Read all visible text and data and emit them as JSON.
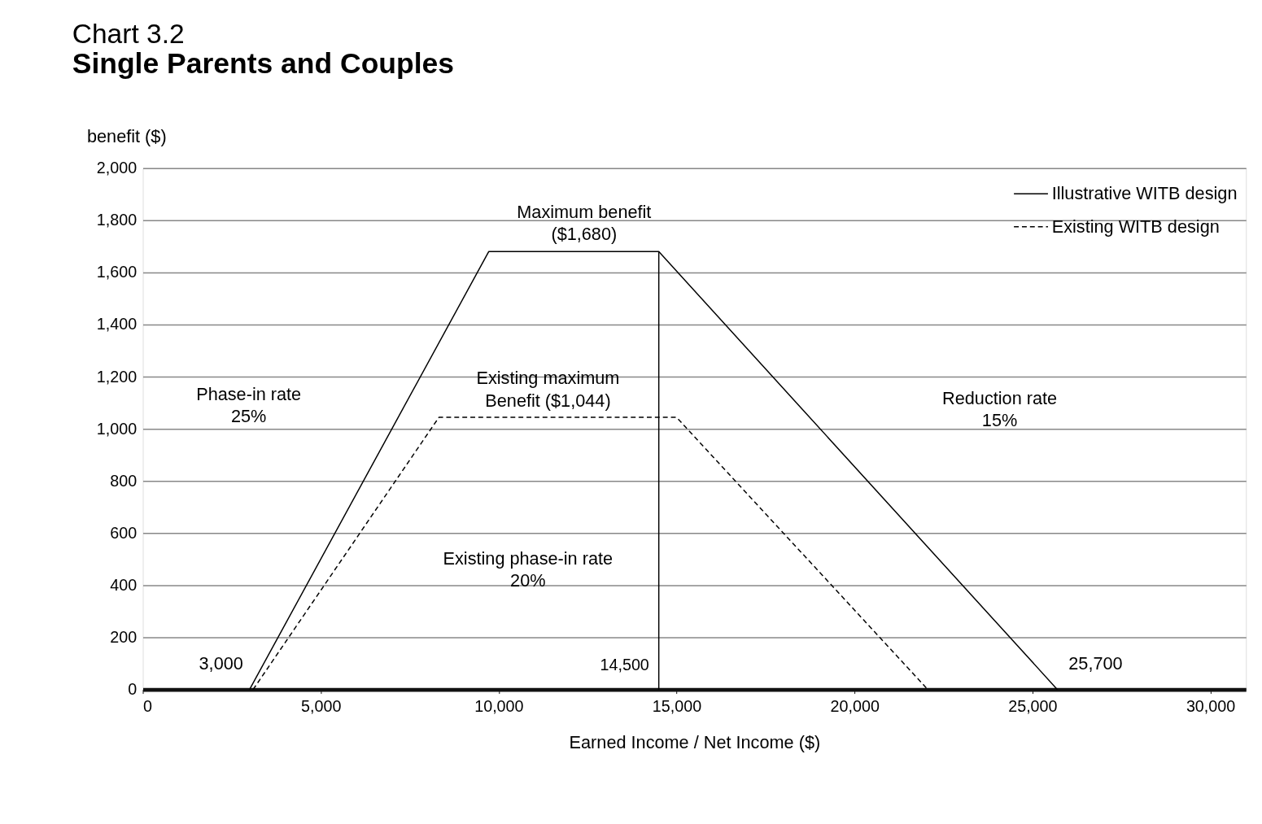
{
  "chart_data": {
    "type": "line",
    "title": "Chart 3.2",
    "subtitle": "Single Parents and Couples",
    "xlabel": "Earned Income / Net Income ($)",
    "ylabel": "benefit ($)",
    "series": [
      {
        "name": "Illustrative WITB design",
        "color": "#000000",
        "line_style": "solid",
        "x": [
          3000,
          9720,
          14500,
          25700
        ],
        "values": [
          0,
          1680,
          1680,
          0
        ]
      },
      {
        "name": "Existing WITB design",
        "color": "#000000",
        "line_style": "dashed",
        "x": [
          3100,
          8320,
          15000,
          22060
        ],
        "values": [
          0,
          1044,
          1044,
          0
        ]
      }
    ],
    "xlim": [
      0,
      31000
    ],
    "xticks": [
      {
        "value": 0,
        "label": "0"
      },
      {
        "value": 5000,
        "label": "5,000"
      },
      {
        "value": 10000,
        "label": "10,000"
      },
      {
        "value": 15000,
        "label": "15,000"
      },
      {
        "value": 20000,
        "label": "20,000"
      },
      {
        "value": 25000,
        "label": "25,000"
      },
      {
        "value": 30000,
        "label": "30,000"
      }
    ],
    "ylim": [
      0,
      2000
    ],
    "yticks": [
      {
        "value": 0,
        "label": "0"
      },
      {
        "value": 200,
        "label": "200"
      },
      {
        "value": 400,
        "label": "400"
      },
      {
        "value": 600,
        "label": "600"
      },
      {
        "value": 800,
        "label": "800"
      },
      {
        "value": 1000,
        "label": "1,000"
      },
      {
        "value": 1200,
        "label": "1,200"
      },
      {
        "value": 1400,
        "label": "1,400"
      },
      {
        "value": 1600,
        "label": "1,600"
      },
      {
        "value": 1800,
        "label": "1,800"
      },
      {
        "value": 2000,
        "label": "2,000"
      }
    ],
    "ref_lines": [
      {
        "axis": "x",
        "value": 14500,
        "label": "14,500",
        "color": "#000000"
      }
    ],
    "annotations": [
      "Maximum benefit\n($1,680)",
      "Existing maximum\nBenefit ($1,044)",
      "Phase-in rate\n25%",
      "Existing phase-in rate\n20%",
      "Reduction rate\n15%",
      {
        "text": "3,000",
        "x": 3000,
        "y": 0
      },
      {
        "text": "25,700",
        "x": 25700,
        "y": 0
      }
    ],
    "grid": "y",
    "legend": "top right"
  }
}
